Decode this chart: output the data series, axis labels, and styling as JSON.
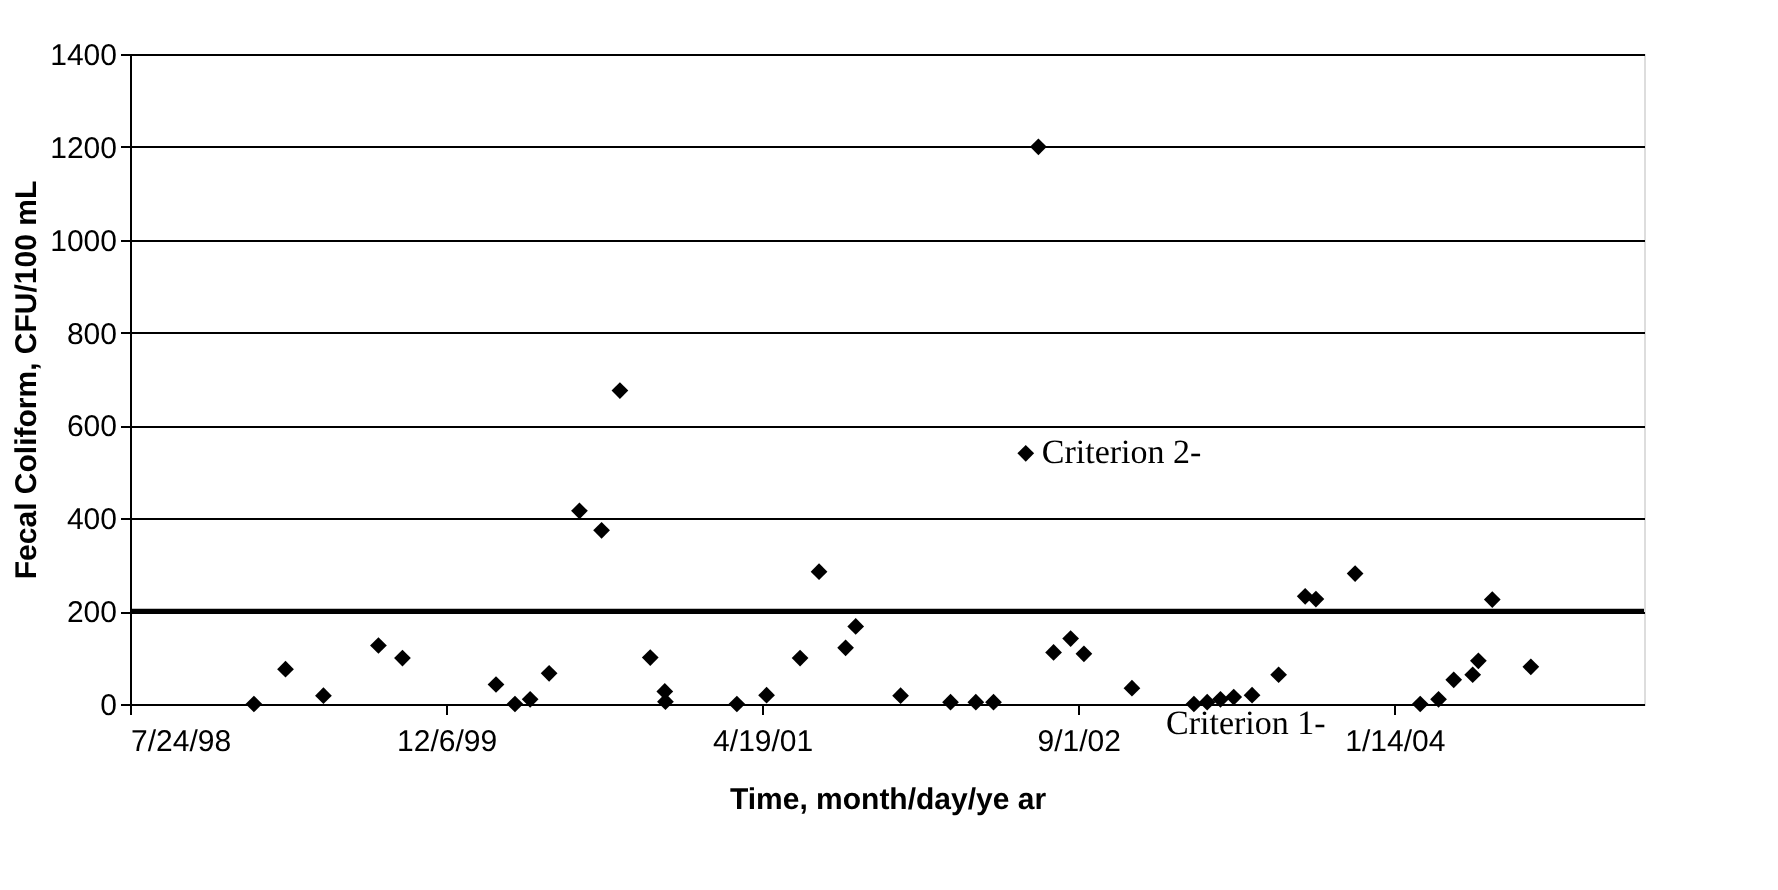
{
  "chart_data": {
    "type": "scatter",
    "xlabel": "Time, month/day/ye ar",
    "ylabel": "Fecal Coliform, CFU/100 mL",
    "x": [
      "1999-02-05",
      "1999-03-27",
      "1999-05-26",
      "1999-08-21",
      "1999-09-28",
      "2000-02-23",
      "2000-03-24",
      "2000-04-17",
      "2000-05-17",
      "2000-07-04",
      "2000-08-08",
      "2000-09-06",
      "2000-10-24",
      "2000-11-16",
      "2000-11-17",
      "2001-03-10",
      "2001-04-26",
      "2001-06-18",
      "2001-07-18",
      "2001-08-29",
      "2001-09-14",
      "2001-11-24",
      "2002-02-11",
      "2002-03-23",
      "2002-04-20",
      "2002-06-10",
      "2002-06-30",
      "2002-07-24",
      "2002-08-20",
      "2002-09-10",
      "2002-11-25",
      "2003-03-03",
      "2003-03-24",
      "2003-04-14",
      "2003-05-05",
      "2003-06-03",
      "2003-07-15",
      "2003-08-26",
      "2003-09-12",
      "2003-11-13",
      "2004-02-24",
      "2004-03-24",
      "2004-04-17",
      "2004-05-17",
      "2004-05-26",
      "2004-06-17",
      "2004-08-17"
    ],
    "series": [
      {
        "color": "#000000",
        "values": [
          0,
          75,
          18,
          126,
          99,
          42,
          0,
          10,
          66,
          416,
          374,
          675,
          100,
          27,
          5,
          0,
          19,
          99,
          285,
          121,
          167,
          18,
          4,
          4,
          4,
          540,
          1200,
          111,
          141,
          108,
          34,
          0,
          4,
          10,
          15,
          19,
          63,
          232,
          226,
          281,
          0,
          10,
          52,
          63,
          93,
          225,
          80
        ]
      }
    ],
    "xlim": [
      "1998-07-24",
      "2005-02-12"
    ],
    "xticks": [
      {
        "value": "1998-07-24",
        "label": "7/24/98"
      },
      {
        "value": "1999-12-06",
        "label": "12/6/99"
      },
      {
        "value": "2001-04-19",
        "label": "4/19/01"
      },
      {
        "value": "2002-09-01",
        "label": "9/1/02"
      },
      {
        "value": "2004-01-14",
        "label": "1/14/04"
      }
    ],
    "ylim": [
      0,
      1400
    ],
    "yticks": [
      0,
      200,
      400,
      600,
      800,
      1000,
      1200,
      1400
    ],
    "ref_lines": [
      {
        "axis": "y",
        "value": 200,
        "color": "#000000"
      }
    ],
    "annotations": [
      {
        "text": "Criterion 2-",
        "x": "2002-06-10",
        "y": 540
      },
      "Criterion 1-"
    ],
    "grid": "y",
    "marker": "diamond"
  }
}
